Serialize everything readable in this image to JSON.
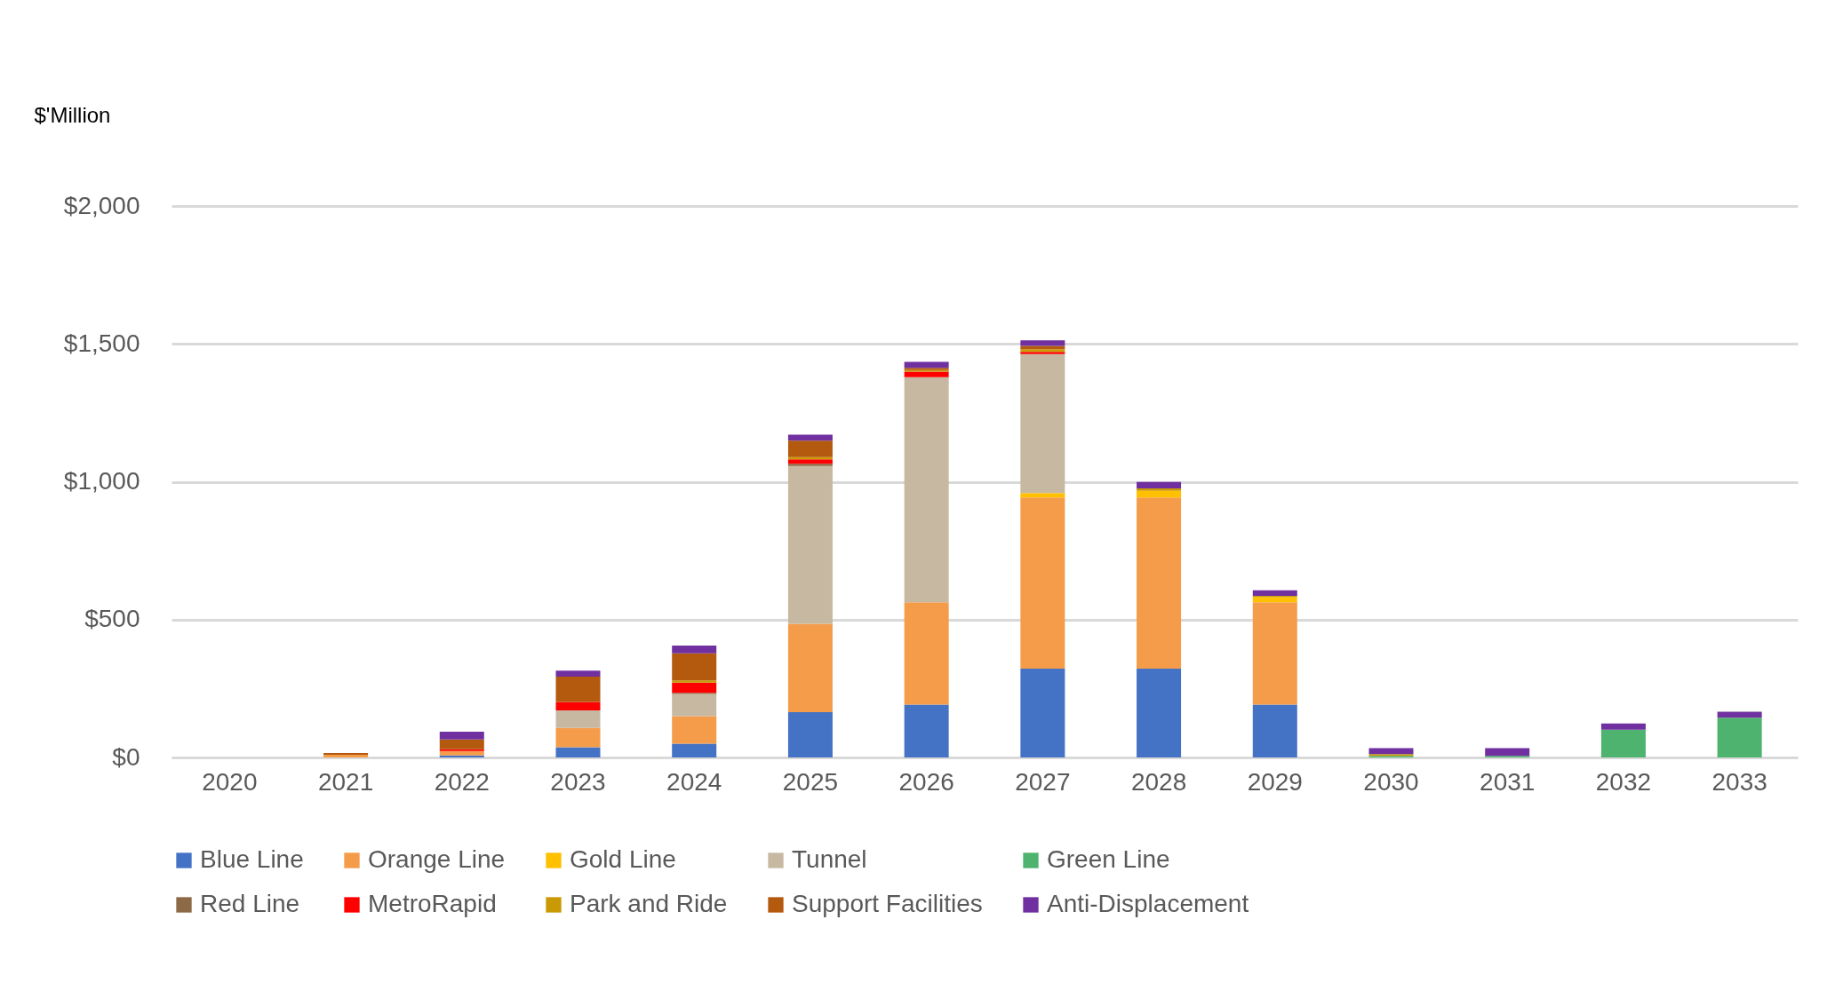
{
  "chart_data": {
    "type": "bar",
    "stacked": true,
    "ylabel": "$'Million",
    "categories": [
      "2020",
      "2021",
      "2022",
      "2023",
      "2024",
      "2025",
      "2026",
      "2027",
      "2028",
      "2029",
      "2030",
      "2031",
      "2032",
      "2033"
    ],
    "ylim": [
      0,
      2000
    ],
    "yticks": [
      {
        "value": 0,
        "label": "$0"
      },
      {
        "value": 500,
        "label": "$500"
      },
      {
        "value": 1000,
        "label": "$1,000"
      },
      {
        "value": 1500,
        "label": "$1,500"
      },
      {
        "value": 2000,
        "label": "$2,000"
      }
    ],
    "grid": "y",
    "legend": "bottom",
    "series": [
      {
        "name": "Blue Line",
        "color": "#4472c4",
        "values": [
          null,
          null,
          7,
          37,
          50,
          164,
          192,
          322,
          322,
          192,
          null,
          null,
          null,
          null
        ]
      },
      {
        "name": "Orange Line",
        "color": "#f49c4a",
        "values": [
          null,
          10,
          16,
          70,
          100,
          321,
          371,
          621,
          621,
          371,
          null,
          null,
          null,
          null
        ]
      },
      {
        "name": "Gold Line",
        "color": "#ffc000",
        "values": [
          null,
          null,
          null,
          null,
          null,
          null,
          null,
          16,
          24,
          18,
          null,
          null,
          null,
          null
        ]
      },
      {
        "name": "Tunnel",
        "color": "#c7b8a1",
        "values": [
          null,
          null,
          null,
          64,
          80,
          572,
          816,
          504,
          null,
          null,
          null,
          null,
          null,
          null
        ]
      },
      {
        "name": "Green Line",
        "color": "#4db36e",
        "values": [
          null,
          null,
          null,
          null,
          null,
          null,
          null,
          null,
          null,
          null,
          6,
          6,
          101,
          144
        ]
      },
      {
        "name": "Red Line",
        "color": "#8b6a45",
        "values": [
          null,
          null,
          null,
          null,
          4,
          8,
          null,
          null,
          null,
          null,
          null,
          null,
          null,
          null
        ]
      },
      {
        "name": "MetroRapid",
        "color": "#ff0000",
        "values": [
          null,
          null,
          7,
          30,
          37,
          16,
          20,
          8,
          null,
          null,
          null,
          null,
          null,
          null
        ]
      },
      {
        "name": "Park and Ride",
        "color": "#c99a06",
        "values": [
          null,
          null,
          null,
          null,
          8,
          8,
          6,
          10,
          9,
          5,
          6,
          null,
          null,
          null
        ]
      },
      {
        "name": "Support Facilities",
        "color": "#b35a0e",
        "values": [
          null,
          6,
          35,
          92,
          99,
          60,
          8,
          12,
          null,
          null,
          null,
          null,
          null,
          null
        ]
      },
      {
        "name": "Anti-Displacement",
        "color": "#7030a0",
        "values": [
          null,
          null,
          28,
          22,
          28,
          22,
          22,
          20,
          23,
          20,
          22,
          28,
          22,
          22
        ]
      }
    ]
  }
}
